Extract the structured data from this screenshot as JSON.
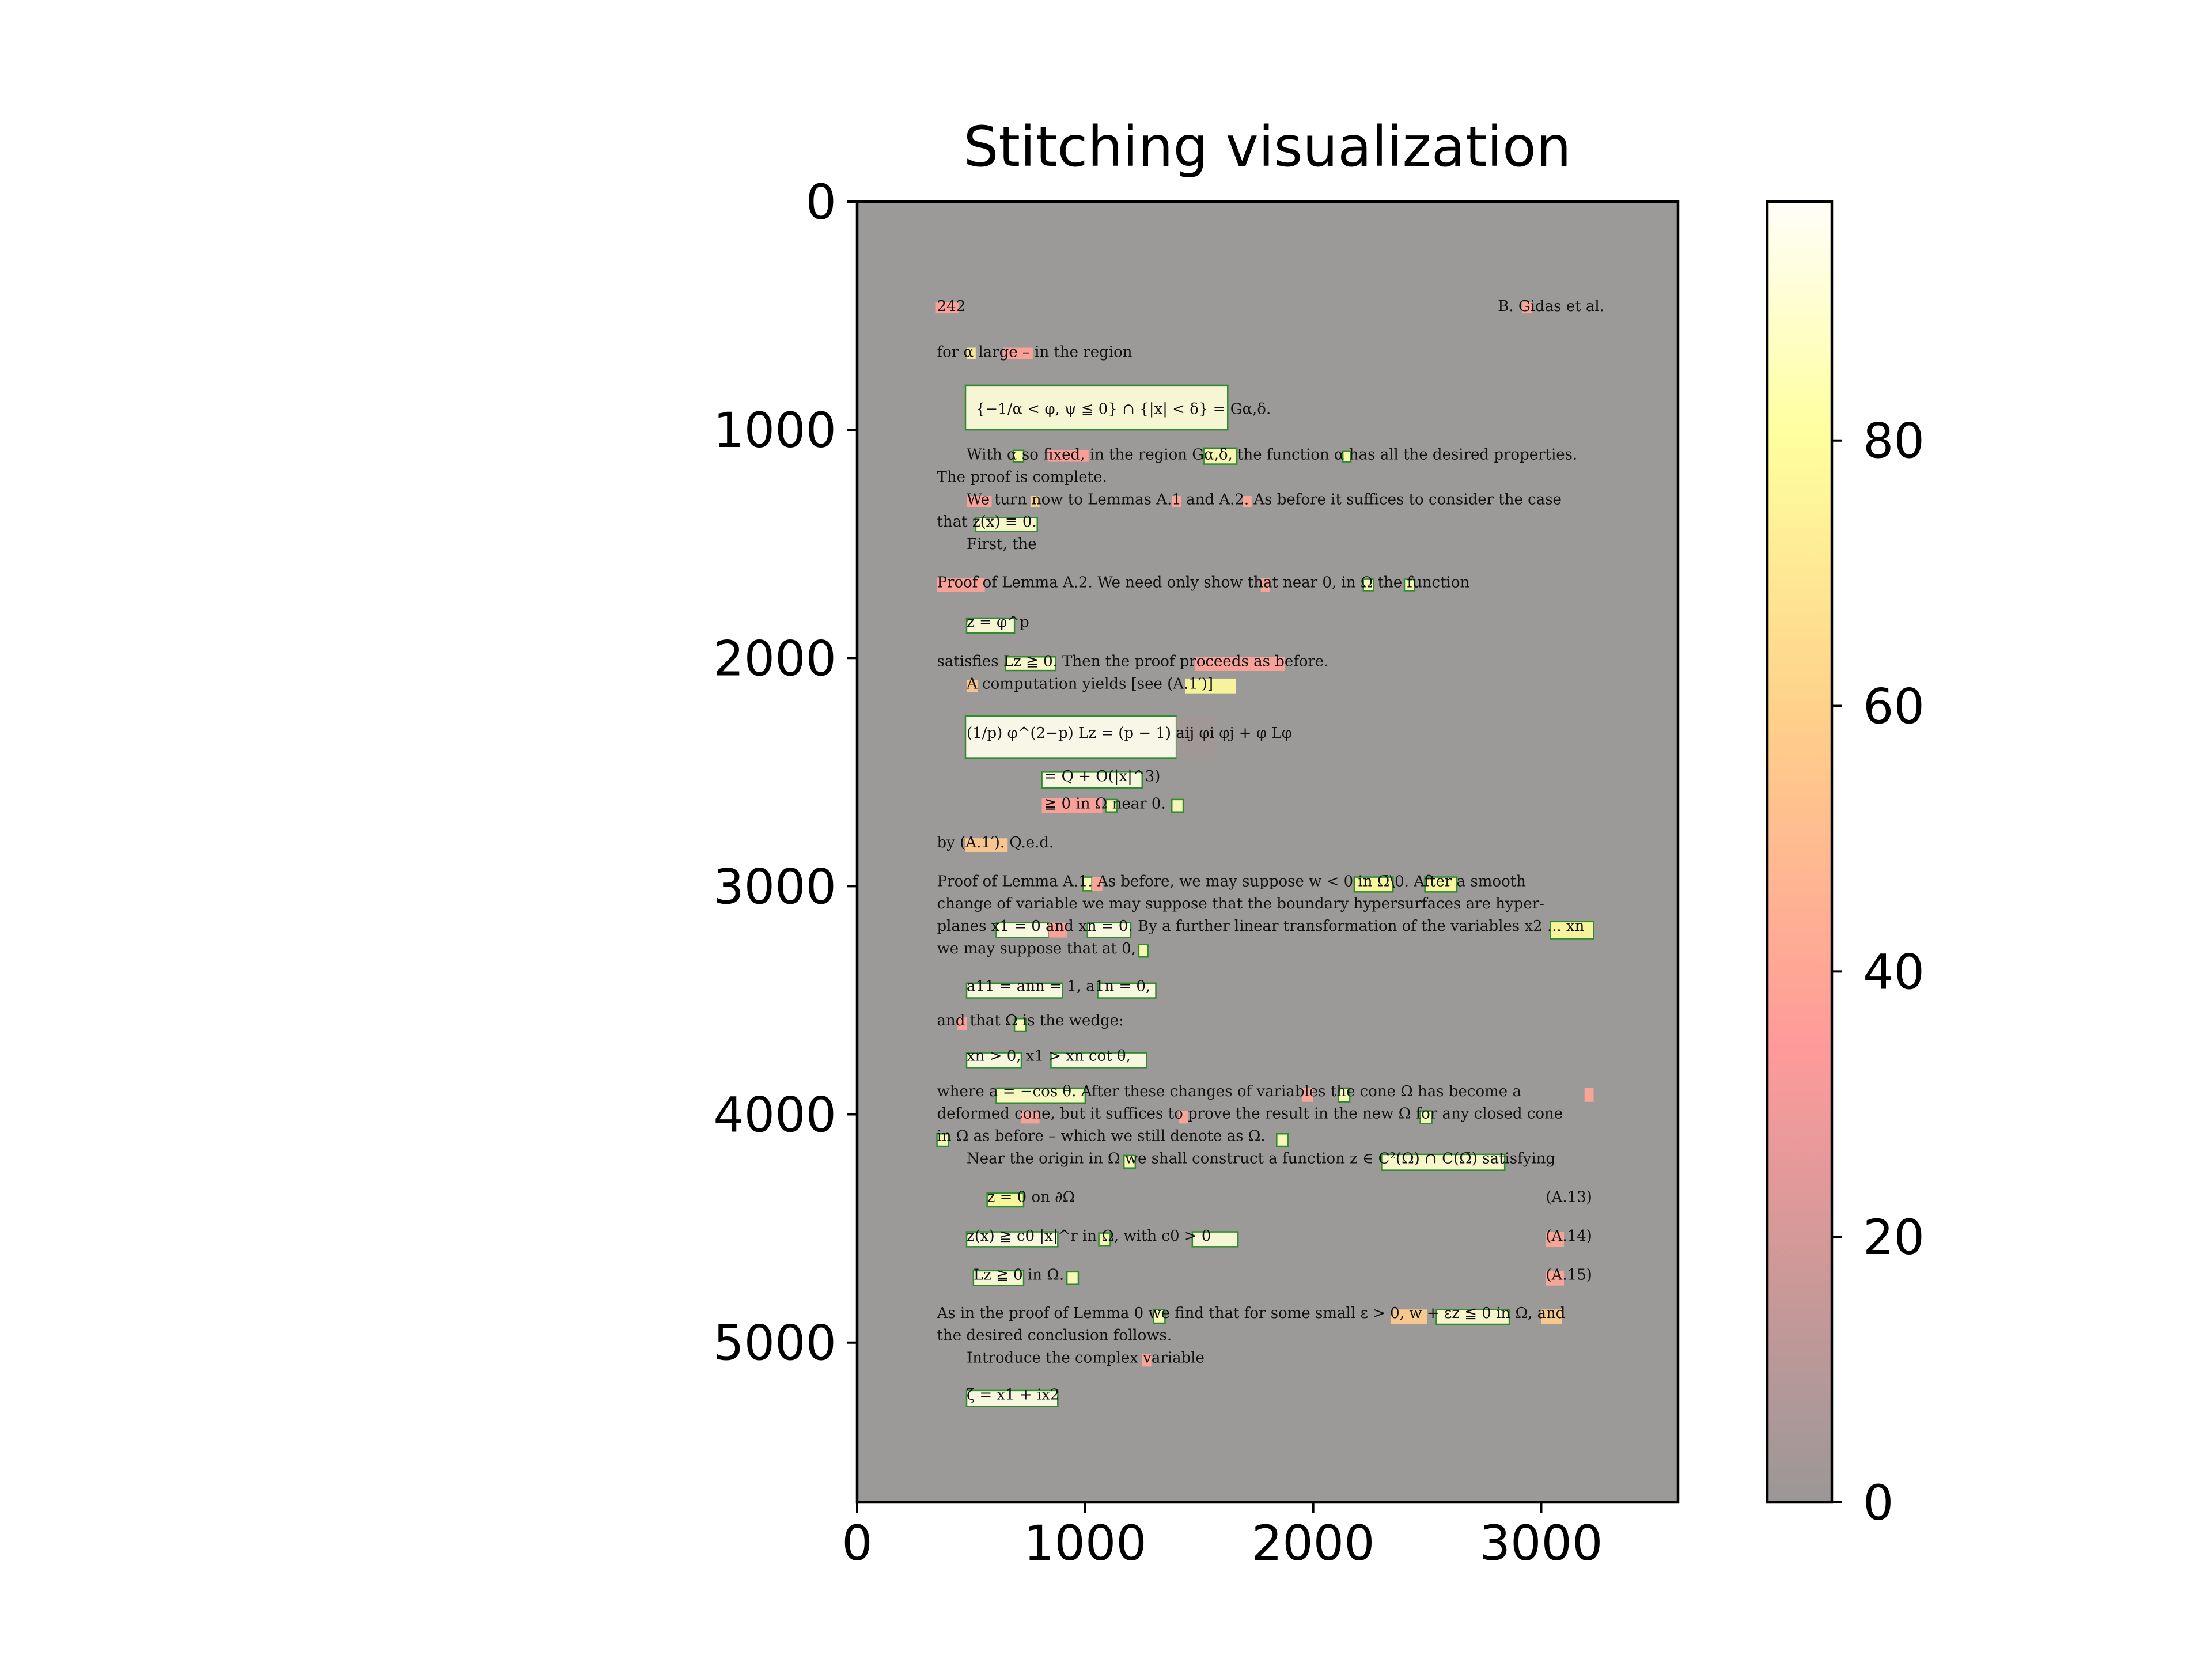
{
  "chart_data": {
    "type": "heatmap",
    "title": "Stitching visualization",
    "xlabel": "",
    "ylabel": "",
    "xlim": [
      0,
      3600
    ],
    "ylim": [
      5700,
      0
    ],
    "x_ticks": [
      0,
      1000,
      2000,
      3000
    ],
    "y_ticks": [
      0,
      1000,
      2000,
      3000,
      4000,
      5000
    ],
    "colorbar": {
      "range": [
        0,
        98
      ],
      "ticks": [
        0,
        20,
        40,
        60,
        80
      ],
      "colors": [
        "#9b9797",
        "#ff9a9a",
        "#ffcf8a",
        "#ffff9e",
        "#fffef8"
      ]
    },
    "background_color": "#9c9a99",
    "text_lines": [
      {
        "text": "242",
        "x": 350,
        "y": 480
      },
      {
        "text": "B. Gidas et al.",
        "x": 2810,
        "y": 480
      },
      {
        "text": "for α large – in the region",
        "x": 350,
        "y": 680
      },
      {
        "text": "{−1/α < φ, ψ ≦ 0} ∩ {|x| < δ} = Gα,δ.",
        "x": 520,
        "y": 930
      },
      {
        "text": "With α so fixed, in the region Gα,δ, the function α has all the desired properties.",
        "x": 480,
        "y": 1130
      },
      {
        "text": "The proof is complete.",
        "x": 350,
        "y": 1228
      },
      {
        "text": "We turn now to Lemmas A.1 and A.2. As before it suffices to consider the case",
        "x": 480,
        "y": 1326
      },
      {
        "text": "that z(x) ≡ 0.",
        "x": 350,
        "y": 1424
      },
      {
        "text": "First, the",
        "x": 480,
        "y": 1522
      },
      {
        "text": "Proof of Lemma A.2. We need only show that near 0, in Ω the function",
        "x": 350,
        "y": 1690
      },
      {
        "text": "z = φ^p",
        "x": 480,
        "y": 1864
      },
      {
        "text": "satisfies Lz ≧ 0. Then the proof proceeds as before.",
        "x": 350,
        "y": 2036
      },
      {
        "text": "A computation yields [see (A.1′)]",
        "x": 480,
        "y": 2134
      },
      {
        "text": "(1/p) φ^(2−p) Lz = (p − 1) aij φi φj + φ Lφ",
        "x": 480,
        "y": 2350
      },
      {
        "text": "= Q + O(|x|^3)",
        "x": 820,
        "y": 2540
      },
      {
        "text": "≧ 0   in Ω near 0.",
        "x": 820,
        "y": 2660
      },
      {
        "text": "by (A.1′).   Q.e.d.",
        "x": 350,
        "y": 2830
      },
      {
        "text": "Proof of Lemma A.1. As before, we may suppose w < 0 in Ω̄\\0. After a smooth",
        "x": 350,
        "y": 3000
      },
      {
        "text": "change of variable we may suppose that the boundary hypersurfaces are hyper-",
        "x": 350,
        "y": 3098
      },
      {
        "text": "planes x1 = 0 and xn = 0. By a further linear transformation of the variables x2 ... xn",
        "x": 350,
        "y": 3196
      },
      {
        "text": "we may suppose that at 0,",
        "x": 350,
        "y": 3294
      },
      {
        "text": "a11 = ann = 1,     a1n = 0,",
        "x": 480,
        "y": 3460
      },
      {
        "text": "and that Ω is the wedge:",
        "x": 350,
        "y": 3610
      },
      {
        "text": "xn > 0,     x1 > xn cot θ,",
        "x": 480,
        "y": 3765
      },
      {
        "text": "where a = −cos θ. After these changes of variables the cone Ω has become a",
        "x": 350,
        "y": 3920
      },
      {
        "text": "deformed cone, but it suffices to prove the result in the new Ω for any closed cone",
        "x": 350,
        "y": 4018
      },
      {
        "text": "in Ω as before – which we still denote as Ω.",
        "x": 350,
        "y": 4116
      },
      {
        "text": "Near the origin in Ω we shall construct a function z ∈ C²(Ω) ∩ C(Ω̄) satisfying",
        "x": 480,
        "y": 4214
      },
      {
        "text": "z = 0    on    ∂Ω",
        "x": 570,
        "y": 4384
      },
      {
        "text": "(A.13)",
        "x": 3020,
        "y": 4384
      },
      {
        "text": "z(x) ≧ c0 |x|^r     in Ω,   with   c0 > 0",
        "x": 480,
        "y": 4554
      },
      {
        "text": "(A.14)",
        "x": 3020,
        "y": 4554
      },
      {
        "text": "Lz ≧ 0     in Ω.",
        "x": 510,
        "y": 4724
      },
      {
        "text": "(A.15)",
        "x": 3020,
        "y": 4724
      },
      {
        "text": "As in the proof of Lemma 0 we find that for some small ε > 0, w + εz ≦ 0 in Ω, and",
        "x": 350,
        "y": 4892
      },
      {
        "text": "the desired conclusion follows.",
        "x": 350,
        "y": 4990
      },
      {
        "text": "Introduce the complex variable",
        "x": 480,
        "y": 5088
      },
      {
        "text": "ζ = x1 + ix2",
        "x": 480,
        "y": 5250
      }
    ],
    "overlays": [
      {
        "x0": 345,
        "y0": 440,
        "x1": 445,
        "y1": 490,
        "value": 38,
        "boxed": false
      },
      {
        "x0": 2915,
        "y0": 440,
        "x1": 2960,
        "y1": 490,
        "value": 40,
        "boxed": false
      },
      {
        "x0": 480,
        "y0": 640,
        "x1": 520,
        "y1": 690,
        "value": 72,
        "boxed": false
      },
      {
        "x0": 640,
        "y0": 640,
        "x1": 770,
        "y1": 690,
        "value": 38,
        "boxed": false
      },
      {
        "x0": 475,
        "y0": 805,
        "x1": 1625,
        "y1": 1000,
        "value": 92,
        "boxed": true
      },
      {
        "x0": 685,
        "y0": 1090,
        "x1": 730,
        "y1": 1140,
        "value": 82,
        "boxed": true
      },
      {
        "x0": 835,
        "y0": 1090,
        "x1": 1015,
        "y1": 1140,
        "value": 36,
        "boxed": false
      },
      {
        "x0": 1520,
        "y0": 1080,
        "x1": 1665,
        "y1": 1150,
        "value": 84,
        "boxed": true
      },
      {
        "x0": 2130,
        "y0": 1095,
        "x1": 2165,
        "y1": 1140,
        "value": 82,
        "boxed": true
      },
      {
        "x0": 480,
        "y0": 1290,
        "x1": 590,
        "y1": 1340,
        "value": 38,
        "boxed": false
      },
      {
        "x0": 760,
        "y0": 1290,
        "x1": 800,
        "y1": 1340,
        "value": 62,
        "boxed": false
      },
      {
        "x0": 1380,
        "y0": 1290,
        "x1": 1420,
        "y1": 1340,
        "value": 40,
        "boxed": false
      },
      {
        "x0": 1690,
        "y0": 1290,
        "x1": 1730,
        "y1": 1340,
        "value": 40,
        "boxed": false
      },
      {
        "x0": 520,
        "y0": 1385,
        "x1": 790,
        "y1": 1445,
        "value": 90,
        "boxed": true
      },
      {
        "x0": 350,
        "y0": 1650,
        "x1": 560,
        "y1": 1710,
        "value": 38,
        "boxed": false
      },
      {
        "x0": 1770,
        "y0": 1650,
        "x1": 1810,
        "y1": 1710,
        "value": 40,
        "boxed": false
      },
      {
        "x0": 2220,
        "y0": 1655,
        "x1": 2265,
        "y1": 1705,
        "value": 86,
        "boxed": true
      },
      {
        "x0": 2400,
        "y0": 1655,
        "x1": 2445,
        "y1": 1705,
        "value": 86,
        "boxed": true
      },
      {
        "x0": 480,
        "y0": 1825,
        "x1": 690,
        "y1": 1890,
        "value": 92,
        "boxed": true
      },
      {
        "x0": 650,
        "y0": 1995,
        "x1": 870,
        "y1": 2055,
        "value": 90,
        "boxed": true
      },
      {
        "x0": 1480,
        "y0": 1995,
        "x1": 1875,
        "y1": 2055,
        "value": 38,
        "boxed": false
      },
      {
        "x0": 480,
        "y0": 2095,
        "x1": 530,
        "y1": 2150,
        "value": 56,
        "boxed": false
      },
      {
        "x0": 1440,
        "y0": 2090,
        "x1": 1660,
        "y1": 2155,
        "value": 78,
        "boxed": false
      },
      {
        "x0": 475,
        "y0": 2255,
        "x1": 1400,
        "y1": 2440,
        "value": 96,
        "boxed": true
      },
      {
        "x0": 1400,
        "y0": 2255,
        "x1": 1570,
        "y1": 2440,
        "value": 2,
        "boxed": false
      },
      {
        "x0": 810,
        "y0": 2500,
        "x1": 1250,
        "y1": 2570,
        "value": 94,
        "boxed": true
      },
      {
        "x0": 810,
        "y0": 2615,
        "x1": 1075,
        "y1": 2680,
        "value": 38,
        "boxed": false
      },
      {
        "x0": 1090,
        "y0": 2620,
        "x1": 1140,
        "y1": 2675,
        "value": 86,
        "boxed": true
      },
      {
        "x0": 1380,
        "y0": 2620,
        "x1": 1430,
        "y1": 2675,
        "value": 86,
        "boxed": true
      },
      {
        "x0": 475,
        "y0": 2790,
        "x1": 660,
        "y1": 2850,
        "value": 56,
        "boxed": false
      },
      {
        "x0": 990,
        "y0": 2960,
        "x1": 1030,
        "y1": 3020,
        "value": 86,
        "boxed": true
      },
      {
        "x0": 1030,
        "y0": 2960,
        "x1": 1075,
        "y1": 3020,
        "value": 40,
        "boxed": false
      },
      {
        "x0": 2180,
        "y0": 2960,
        "x1": 2350,
        "y1": 3025,
        "value": 80,
        "boxed": true
      },
      {
        "x0": 2490,
        "y0": 2960,
        "x1": 2630,
        "y1": 3025,
        "value": 80,
        "boxed": true
      },
      {
        "x0": 610,
        "y0": 3160,
        "x1": 840,
        "y1": 3225,
        "value": 94,
        "boxed": true
      },
      {
        "x0": 840,
        "y0": 3160,
        "x1": 920,
        "y1": 3225,
        "value": 38,
        "boxed": false
      },
      {
        "x0": 1010,
        "y0": 3160,
        "x1": 1200,
        "y1": 3225,
        "value": 94,
        "boxed": true
      },
      {
        "x0": 3040,
        "y0": 3155,
        "x1": 3230,
        "y1": 3230,
        "value": 78,
        "boxed": true
      },
      {
        "x0": 1235,
        "y0": 3255,
        "x1": 1275,
        "y1": 3310,
        "value": 84,
        "boxed": true
      },
      {
        "x0": 480,
        "y0": 3425,
        "x1": 900,
        "y1": 3490,
        "value": 94,
        "boxed": true
      },
      {
        "x0": 1055,
        "y0": 3425,
        "x1": 1310,
        "y1": 3490,
        "value": 94,
        "boxed": true
      },
      {
        "x0": 440,
        "y0": 3575,
        "x1": 480,
        "y1": 3630,
        "value": 38,
        "boxed": false
      },
      {
        "x0": 690,
        "y0": 3580,
        "x1": 740,
        "y1": 3635,
        "value": 86,
        "boxed": true
      },
      {
        "x0": 480,
        "y0": 3730,
        "x1": 720,
        "y1": 3795,
        "value": 94,
        "boxed": true
      },
      {
        "x0": 850,
        "y0": 3730,
        "x1": 1270,
        "y1": 3795,
        "value": 94,
        "boxed": true
      },
      {
        "x0": 610,
        "y0": 3885,
        "x1": 1000,
        "y1": 3950,
        "value": 88,
        "boxed": true
      },
      {
        "x0": 1950,
        "y0": 3885,
        "x1": 2000,
        "y1": 3945,
        "value": 40,
        "boxed": false
      },
      {
        "x0": 2110,
        "y0": 3885,
        "x1": 2160,
        "y1": 3945,
        "value": 86,
        "boxed": true
      },
      {
        "x0": 3190,
        "y0": 3885,
        "x1": 3230,
        "y1": 3945,
        "value": 40,
        "boxed": false
      },
      {
        "x0": 720,
        "y0": 3985,
        "x1": 800,
        "y1": 4040,
        "value": 38,
        "boxed": false
      },
      {
        "x0": 1410,
        "y0": 3985,
        "x1": 1450,
        "y1": 4040,
        "value": 40,
        "boxed": false
      },
      {
        "x0": 2470,
        "y0": 3985,
        "x1": 2520,
        "y1": 4040,
        "value": 86,
        "boxed": true
      },
      {
        "x0": 350,
        "y0": 4085,
        "x1": 400,
        "y1": 4140,
        "value": 86,
        "boxed": true
      },
      {
        "x0": 1840,
        "y0": 4085,
        "x1": 1890,
        "y1": 4140,
        "value": 86,
        "boxed": true
      },
      {
        "x0": 1170,
        "y0": 4180,
        "x1": 1220,
        "y1": 4235,
        "value": 86,
        "boxed": true
      },
      {
        "x0": 2300,
        "y0": 4175,
        "x1": 2840,
        "y1": 4245,
        "value": 90,
        "boxed": true
      },
      {
        "x0": 570,
        "y0": 4345,
        "x1": 730,
        "y1": 4405,
        "value": 80,
        "boxed": true
      },
      {
        "x0": 480,
        "y0": 4515,
        "x1": 880,
        "y1": 4580,
        "value": 94,
        "boxed": true
      },
      {
        "x0": 1060,
        "y0": 4520,
        "x1": 1110,
        "y1": 4575,
        "value": 86,
        "boxed": true
      },
      {
        "x0": 1470,
        "y0": 4515,
        "x1": 1670,
        "y1": 4580,
        "value": 92,
        "boxed": true
      },
      {
        "x0": 3020,
        "y0": 4515,
        "x1": 3100,
        "y1": 4580,
        "value": 40,
        "boxed": false
      },
      {
        "x0": 510,
        "y0": 4685,
        "x1": 730,
        "y1": 4750,
        "value": 92,
        "boxed": true
      },
      {
        "x0": 920,
        "y0": 4690,
        "x1": 970,
        "y1": 4745,
        "value": 86,
        "boxed": true
      },
      {
        "x0": 3020,
        "y0": 4685,
        "x1": 3100,
        "y1": 4750,
        "value": 40,
        "boxed": false
      },
      {
        "x0": 1300,
        "y0": 4855,
        "x1": 1350,
        "y1": 4915,
        "value": 86,
        "boxed": true
      },
      {
        "x0": 2340,
        "y0": 4855,
        "x1": 2500,
        "y1": 4920,
        "value": 58,
        "boxed": false
      },
      {
        "x0": 2540,
        "y0": 4855,
        "x1": 2860,
        "y1": 4920,
        "value": 90,
        "boxed": true
      },
      {
        "x0": 3000,
        "y0": 4855,
        "x1": 3090,
        "y1": 4920,
        "value": 58,
        "boxed": false
      },
      {
        "x0": 1250,
        "y0": 5050,
        "x1": 1290,
        "y1": 5105,
        "value": 40,
        "boxed": false
      },
      {
        "x0": 480,
        "y0": 5210,
        "x1": 880,
        "y1": 5280,
        "value": 94,
        "boxed": true
      }
    ]
  }
}
